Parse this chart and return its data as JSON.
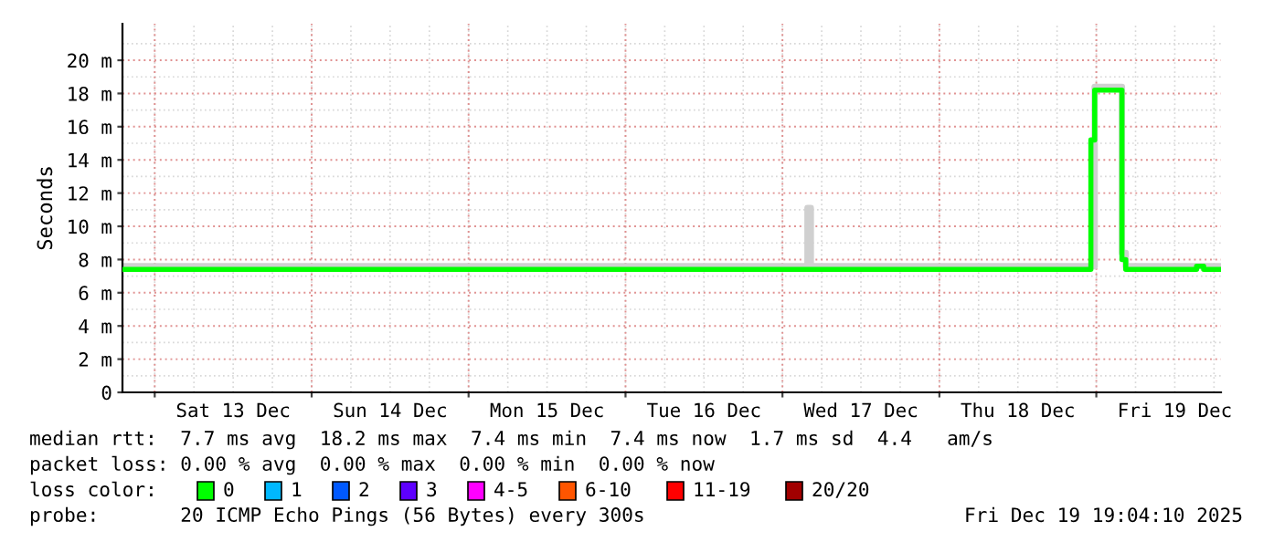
{
  "chart_data": {
    "type": "step",
    "ylabel": "Seconds",
    "series": [
      {
        "color": "#d0d0d0",
        "x": [
          "2025-12-12T19:04",
          "2025-12-17T03:50",
          "2025-12-17T04:20",
          "2025-12-18T23:45",
          "2025-12-19T03:55",
          "2025-12-19T04:30",
          "2025-12-19T19:04"
        ],
        "values": [
          7.6,
          11.1,
          7.6,
          18.4,
          8.4,
          7.6,
          7.6
        ]
      },
      {
        "color": "#00ff00",
        "x": [
          "2025-12-12T19:04",
          "2025-12-18T23:10",
          "2025-12-18T23:45",
          "2025-12-19T03:55",
          "2025-12-19T04:30",
          "2025-12-19T15:20",
          "2025-12-19T16:25",
          "2025-12-19T19:04"
        ],
        "values": [
          7.4,
          15.2,
          18.2,
          8.0,
          7.4,
          7.6,
          7.4,
          7.4
        ]
      }
    ],
    "xlim": [
      "2025-12-12T19:04",
      "2025-12-19T19:04"
    ],
    "xticks": [
      {
        "value": "2025-12-13",
        "label": null
      },
      {
        "value": "2025-12-13T12:00",
        "label": "Sat 13 Dec"
      },
      {
        "value": "2025-12-14",
        "label": null
      },
      {
        "value": "2025-12-14T12:00",
        "label": "Sun 14 Dec"
      },
      {
        "value": "2025-12-15",
        "label": null
      },
      {
        "value": "2025-12-15T12:00",
        "label": "Mon 15 Dec"
      },
      {
        "value": "2025-12-16",
        "label": null
      },
      {
        "value": "2025-12-16T12:00",
        "label": "Tue 16 Dec"
      },
      {
        "value": "2025-12-17",
        "label": null
      },
      {
        "value": "2025-12-17T12:00",
        "label": "Wed 17 Dec"
      },
      {
        "value": "2025-12-18",
        "label": null
      },
      {
        "value": "2025-12-18T12:00",
        "label": "Thu 18 Dec"
      },
      {
        "value": "2025-12-19",
        "label": null
      },
      {
        "value": "2025-12-19T12:00",
        "label": "Fri 19 Dec"
      }
    ],
    "ylim": [
      0,
      22.2
    ],
    "yticks": [
      0,
      {
        "value": 2,
        "label": "2 m"
      },
      {
        "value": 4,
        "label": "4 m"
      },
      {
        "value": 6,
        "label": "6 m"
      },
      {
        "value": 8,
        "label": "8 m"
      },
      {
        "value": 10,
        "label": "10 m"
      },
      {
        "value": 12,
        "label": "12 m"
      },
      {
        "value": 14,
        "label": "14 m"
      },
      {
        "value": 16,
        "label": "16 m"
      },
      {
        "value": 18,
        "label": "18 m"
      },
      {
        "value": 20,
        "label": "20 m"
      }
    ],
    "grid": true,
    "annotations": [
      "median rtt:  7.7 ms avg  18.2 ms max  7.4 ms min  7.4 ms now  1.7 ms sd  4.4   am/s",
      "packet loss: 0.00 % avg  0.00 % max  0.00 % min  0.00 % now",
      "loss color:",
      "0",
      "1",
      "2",
      "3",
      "4-5",
      "6-10",
      "11-19",
      "20/20",
      "probe:       20 ICMP Echo Pings (56 Bytes) every 300s",
      "Fri Dec 19 19:04:10 2025"
    ]
  }
}
